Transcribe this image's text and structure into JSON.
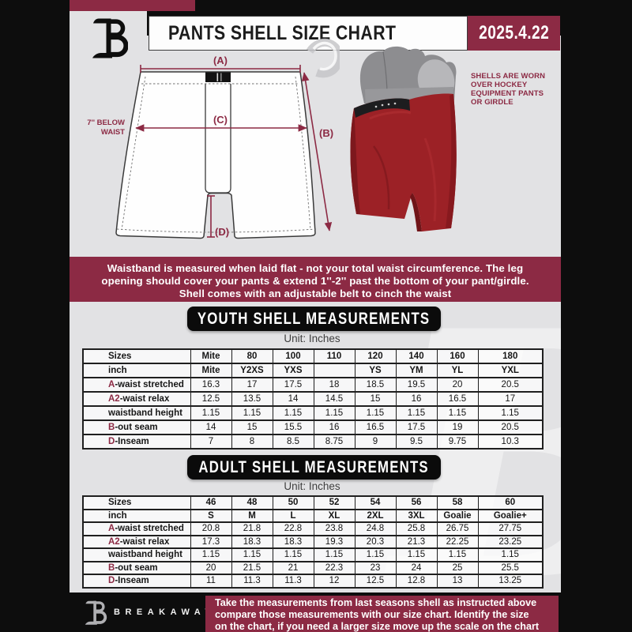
{
  "header": {
    "logo_letter": "B",
    "title": "PANTS SHELL SIZE CHART",
    "date": "2025.4.22"
  },
  "diagram": {
    "label_a": "(A)",
    "label_b": "(B)",
    "label_c": "(C)",
    "label_d": "(D)",
    "waist_note_line1": "7'' BELOW",
    "waist_note_line2": "WAIST",
    "photo_note": [
      "SHELLS ARE WORN",
      "OVER HOCKEY",
      "EQUIPMENT PANTS",
      "OR GIRDLE"
    ]
  },
  "notice": {
    "lines": [
      "Waistband is measured when laid flat - not your total waist circumference. The leg",
      "opening should cover your pants & extend 1''-2'' past the bottom of your pant/girdle.",
      "Shell comes with an adjustable belt to cinch the waist"
    ]
  },
  "youth": {
    "banner": "YOUTH SHELL MEASUREMENTS",
    "unit": "Unit: Inches",
    "table": {
      "rows": [
        {
          "prefix": "",
          "label": "Sizes",
          "bold": true,
          "cells": [
            "Mite",
            "80",
            "100",
            "110",
            "120",
            "140",
            "160",
            "180"
          ]
        },
        {
          "prefix": "",
          "label": "inch",
          "bold": true,
          "cells": [
            "Mite",
            "Y2XS",
            "YXS",
            "",
            "YS",
            "YM",
            "YL",
            "YXL"
          ]
        },
        {
          "prefix": "A",
          "label": "-waist stretched",
          "bold": false,
          "cells": [
            "16.3",
            "17",
            "17.5",
            "18",
            "18.5",
            "19.5",
            "20",
            "20.5"
          ]
        },
        {
          "prefix": "A2",
          "label": "-waist relax",
          "bold": false,
          "cells": [
            "12.5",
            "13.5",
            "14",
            "14.5",
            "15",
            "16",
            "16.5",
            "17"
          ]
        },
        {
          "prefix": "",
          "label": "waistband height",
          "bold": false,
          "cells": [
            "1.15",
            "1.15",
            "1.15",
            "1.15",
            "1.15",
            "1.15",
            "1.15",
            "1.15"
          ]
        },
        {
          "prefix": "B",
          "label": "-out seam",
          "bold": false,
          "cells": [
            "14",
            "15",
            "15.5",
            "16",
            "16.5",
            "17.5",
            "19",
            "20.5"
          ]
        },
        {
          "prefix": "D",
          "label": "-Inseam",
          "bold": false,
          "cells": [
            "7",
            "8",
            "8.5",
            "8.75",
            "9",
            "9.5",
            "9.75",
            "10.3"
          ]
        }
      ]
    }
  },
  "adult": {
    "banner": "ADULT SHELL MEASUREMENTS",
    "unit": "Unit: Inches",
    "table": {
      "rows": [
        {
          "prefix": "",
          "label": "Sizes",
          "bold": true,
          "cells": [
            "46",
            "48",
            "50",
            "52",
            "54",
            "56",
            "58",
            "60"
          ]
        },
        {
          "prefix": "",
          "label": "inch",
          "bold": true,
          "cells": [
            "S",
            "M",
            "L",
            "XL",
            "2XL",
            "3XL",
            "Goalie",
            "Goalie+"
          ]
        },
        {
          "prefix": "A",
          "label": "-waist stretched",
          "bold": false,
          "cells": [
            "20.8",
            "21.8",
            "22.8",
            "23.8",
            "24.8",
            "25.8",
            "26.75",
            "27.75"
          ]
        },
        {
          "prefix": "A2",
          "label": "-waist relax",
          "bold": false,
          "cells": [
            "17.3",
            "18.3",
            "18.3",
            "19.3",
            "20.3",
            "21.3",
            "22.25",
            "23.25"
          ]
        },
        {
          "prefix": "",
          "label": "waistband height",
          "bold": false,
          "cells": [
            "1.15",
            "1.15",
            "1.15",
            "1.15",
            "1.15",
            "1.15",
            "1.15",
            "1.15"
          ]
        },
        {
          "prefix": "B",
          "label": "-out seam",
          "bold": false,
          "cells": [
            "20",
            "21.5",
            "21",
            "22.3",
            "23",
            "24",
            "25",
            "25.5"
          ]
        },
        {
          "prefix": "D",
          "label": "-Inseam",
          "bold": false,
          "cells": [
            "11",
            "11.3",
            "11.3",
            "12",
            "12.5",
            "12.8",
            "13",
            "13.25"
          ]
        }
      ]
    }
  },
  "footer": {
    "brand": "BREAKAWAY",
    "lines": [
      "Take the measurements from last seasons shell as instructed above",
      "compare those measurements  with our size chart. Identify the size",
      "on the chart, if you need a larger size move up the scale on the chart"
    ]
  },
  "colors": {
    "maroon": "#8c2a44",
    "black": "#0d0d0d",
    "page_gray": "#e2e2e4",
    "pants_red": "#9c2126"
  }
}
